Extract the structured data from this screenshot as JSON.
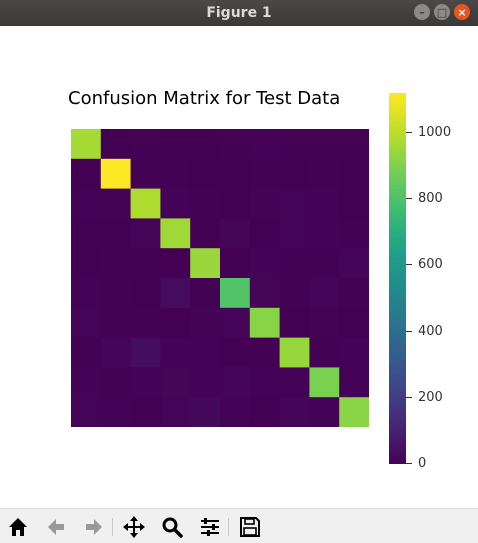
{
  "window": {
    "title": "Figure 1",
    "minimize_label": "–",
    "maximize_label": "□",
    "close_label": "×"
  },
  "chart_data": {
    "type": "heatmap",
    "title": "Confusion Matrix for Test Data",
    "rows": 10,
    "cols": 10,
    "values": [
      [
        970,
        0,
        2,
        1,
        0,
        3,
        6,
        2,
        4,
        2
      ],
      [
        0,
        1120,
        3,
        2,
        0,
        1,
        4,
        1,
        4,
        0
      ],
      [
        7,
        5,
        985,
        8,
        4,
        1,
        5,
        10,
        7,
        0
      ],
      [
        1,
        1,
        13,
        960,
        1,
        15,
        0,
        10,
        6,
        3
      ],
      [
        1,
        2,
        3,
        0,
        950,
        0,
        6,
        2,
        2,
        16
      ],
      [
        8,
        2,
        1,
        35,
        3,
        815,
        12,
        3,
        10,
        3
      ],
      [
        10,
        3,
        4,
        1,
        5,
        10,
        920,
        0,
        5,
        0
      ],
      [
        2,
        18,
        40,
        6,
        6,
        1,
        0,
        945,
        2,
        8
      ],
      [
        8,
        4,
        8,
        15,
        6,
        18,
        6,
        7,
        895,
        7
      ],
      [
        11,
        6,
        3,
        10,
        25,
        8,
        1,
        16,
        6,
        923
      ]
    ],
    "colormap": "viridis",
    "vmin": 0,
    "vmax": 1120,
    "colorbar_ticks": [
      "0",
      "200",
      "400",
      "600",
      "800",
      "1000"
    ],
    "colorbar_tick_values": [
      0,
      200,
      400,
      600,
      800,
      1000
    ]
  },
  "toolbar": {
    "home_icon": "home-icon",
    "back_icon": "back-arrow-icon",
    "forward_icon": "forward-arrow-icon",
    "pan_icon": "pan-move-icon",
    "zoom_icon": "zoom-magnifier-icon",
    "configure_icon": "configure-subplots-icon",
    "save_icon": "save-floppy-icon"
  }
}
